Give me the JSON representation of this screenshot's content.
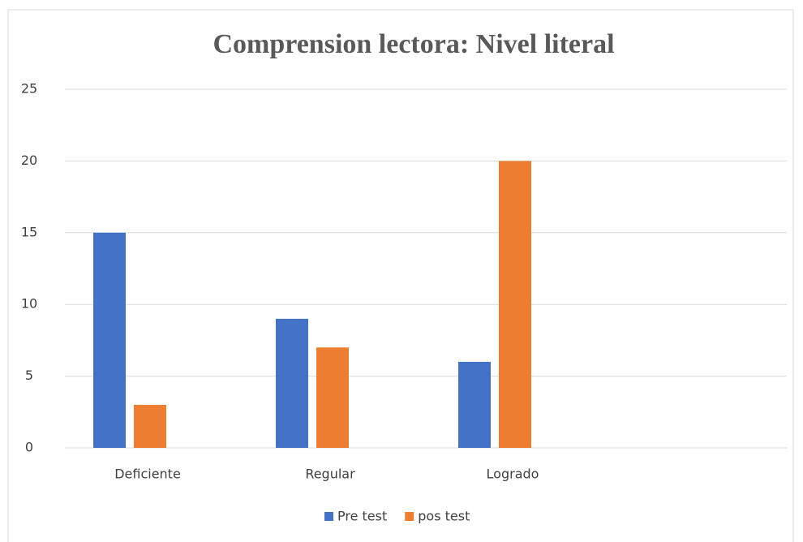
{
  "chart_data": {
    "type": "bar",
    "title": "Comprension lectora: Nivel literal",
    "categories": [
      "Deficiente",
      "Regular",
      "Logrado",
      null
    ],
    "series": [
      {
        "name": "Pre test",
        "color": "#4472c4",
        "values": [
          15,
          9,
          6,
          null
        ]
      },
      {
        "name": "pos test",
        "color": "#ed7d31",
        "values": [
          3,
          7,
          20,
          null
        ]
      }
    ],
    "ylim": [
      0,
      25
    ],
    "yticks": [
      0,
      5,
      10,
      15,
      20,
      25
    ],
    "grid": true,
    "legend": "bottom"
  }
}
